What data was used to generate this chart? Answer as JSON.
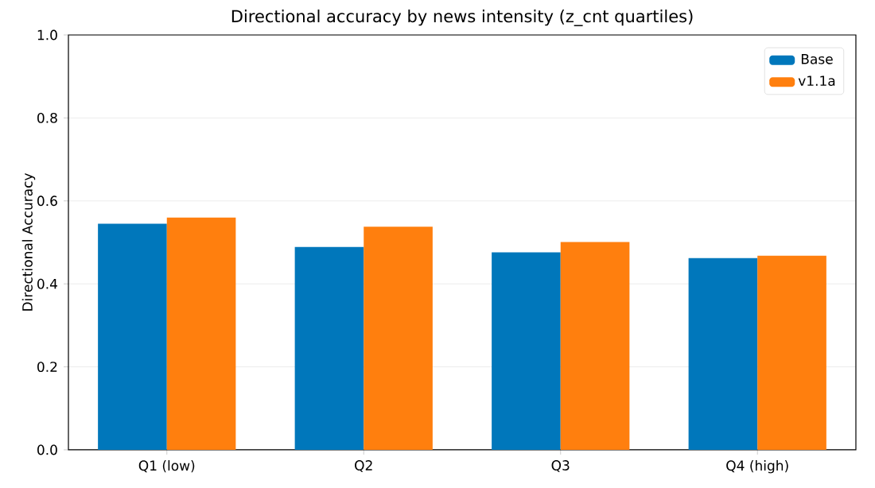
{
  "chart_data": {
    "type": "bar",
    "title": "Directional accuracy by news intensity (z_cnt quartiles)",
    "ylabel": "Directional Accuracy",
    "categories": [
      "Q1 (low)",
      "Q2",
      "Q3",
      "Q4 (high)"
    ],
    "series": [
      {
        "name": "Base",
        "color": "#0077bb",
        "values": [
          0.545,
          0.489,
          0.476,
          0.462
        ]
      },
      {
        "name": "v1.1a",
        "color": "#ff7f0e",
        "values": [
          0.56,
          0.538,
          0.501,
          0.468
        ]
      }
    ],
    "ylim": [
      0,
      1.0
    ],
    "yticks": [
      {
        "value": 0,
        "label": "0.0"
      },
      {
        "value": 0.2,
        "label": "0.2"
      },
      {
        "value": 0.4,
        "label": "0.4"
      },
      {
        "value": 0.6,
        "label": "0.6"
      },
      {
        "value": 0.8,
        "label": "0.8"
      },
      {
        "value": 1.0,
        "label": "1.0"
      }
    ],
    "grid": "y",
    "legend": "top right"
  }
}
